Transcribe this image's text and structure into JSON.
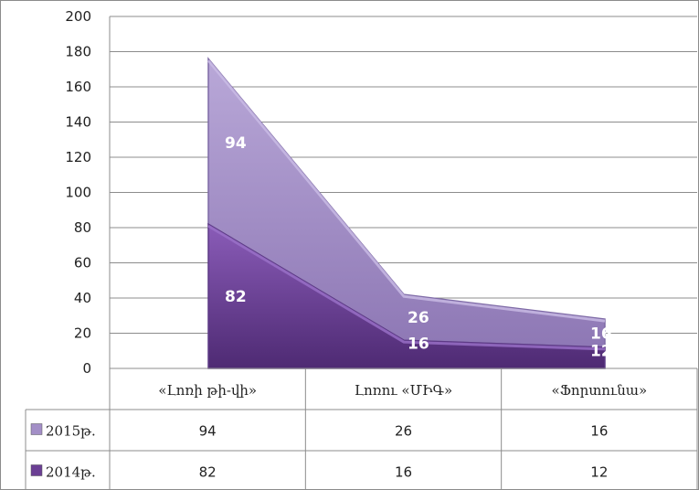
{
  "chart_data": {
    "type": "area",
    "stacked": true,
    "categories": [
      "«Լոռի թի-վի»",
      "Լոռու «ՄԻԳ»",
      "«Ֆորտունա»"
    ],
    "series": [
      {
        "name": "2014թ.",
        "values": [
          82,
          16,
          12
        ],
        "color": "#6b3f94"
      },
      {
        "name": "2015թ.",
        "values": [
          94,
          26,
          16
        ],
        "color": "#a38fc7"
      }
    ],
    "ylim": [
      0,
      200
    ],
    "yticks": [
      0,
      20,
      40,
      60,
      80,
      100,
      120,
      140,
      160,
      180,
      200
    ],
    "grid": true,
    "data_table": true
  }
}
